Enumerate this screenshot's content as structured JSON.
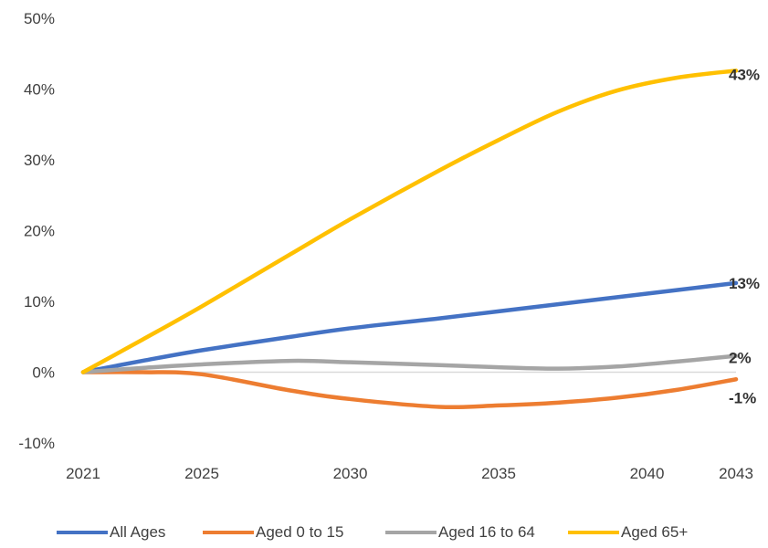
{
  "chart_data": {
    "type": "line",
    "title": "",
    "xlabel": "",
    "ylabel": "",
    "x": [
      2021,
      2023,
      2025,
      2028,
      2030,
      2033,
      2035,
      2037,
      2039,
      2041,
      2043
    ],
    "x_ticks": [
      "2021",
      "2025",
      "2030",
      "2035",
      "2040",
      "2043"
    ],
    "x_tick_values": [
      2021,
      2025,
      2030,
      2035,
      2040,
      2043
    ],
    "y_ticks": [
      "50%",
      "40%",
      "30%",
      "20%",
      "10%",
      "0%",
      "-10%"
    ],
    "y_tick_values": [
      50,
      40,
      30,
      20,
      10,
      0,
      -10
    ],
    "ylim": [
      -10,
      50
    ],
    "xlim": [
      2021,
      2043
    ],
    "grid": false,
    "legend_position": "bottom",
    "series": [
      {
        "name": "All Ages",
        "color": "#4472C4",
        "values": [
          0,
          1.6,
          3.1,
          5.0,
          6.2,
          7.6,
          8.6,
          9.6,
          10.6,
          11.6,
          12.6
        ],
        "end_label": "13%"
      },
      {
        "name": "Aged 0 to 15",
        "color": "#ED7D31",
        "values": [
          0,
          0,
          -0.3,
          -2.6,
          -3.8,
          -4.9,
          -4.7,
          -4.3,
          -3.6,
          -2.5,
          -1.0
        ],
        "end_label": "-1%"
      },
      {
        "name": "Aged 16 to 64",
        "color": "#A5A5A5",
        "values": [
          0,
          0.6,
          1.1,
          1.6,
          1.4,
          1.0,
          0.7,
          0.5,
          0.8,
          1.5,
          2.3
        ],
        "end_label": "2%"
      },
      {
        "name": "Aged 65+",
        "color": "#FFC000",
        "values": [
          0,
          4.6,
          9.3,
          16.7,
          21.6,
          28.5,
          32.8,
          36.8,
          39.8,
          41.6,
          42.6
        ],
        "end_label": "43%"
      }
    ]
  }
}
